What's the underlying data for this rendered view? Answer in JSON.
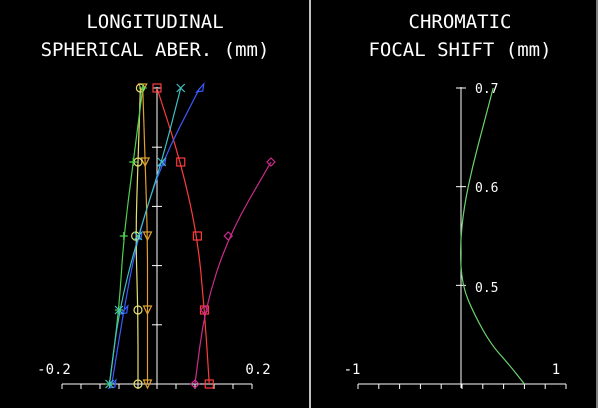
{
  "chart_data": [
    {
      "type": "line",
      "title_lines": [
        "LONGITUDINAL",
        "SPHERICAL ABER. (mm)"
      ],
      "xlim": [
        -0.2,
        0.2
      ],
      "ylim": [
        0,
        1
      ],
      "x_tick_labels": [
        "-0.2",
        "0.2"
      ],
      "grid": false,
      "y_ticks": [
        0.2,
        0.4,
        0.6,
        0.8
      ],
      "series": [
        {
          "color": "#ff3b3b",
          "marker": "square",
          "points": [
            [
              0.11,
              0
            ],
            [
              0.1,
              0.25
            ],
            [
              0.085,
              0.5
            ],
            [
              0.05,
              0.75
            ],
            [
              0.0,
              1.0
            ]
          ]
        },
        {
          "color": "#3a5bff",
          "marker": "arrow",
          "points": [
            [
              -0.095,
              0
            ],
            [
              -0.07,
              0.25
            ],
            [
              -0.04,
              0.5
            ],
            [
              0.01,
              0.75
            ],
            [
              0.09,
              1.0
            ]
          ]
        },
        {
          "color": "#cc2c8c",
          "marker": "diamond",
          "points": [
            [
              0.08,
              0
            ],
            [
              0.1,
              0.25
            ],
            [
              0.15,
              0.5
            ],
            [
              0.24,
              0.75
            ]
          ]
        },
        {
          "color": "#e0a030",
          "marker": "triangle",
          "points": [
            [
              -0.02,
              0
            ],
            [
              -0.02,
              0.25
            ],
            [
              -0.02,
              0.5
            ],
            [
              -0.025,
              0.75
            ],
            [
              -0.03,
              1.0
            ]
          ]
        },
        {
          "color": "#e8e070",
          "marker": "circle",
          "points": [
            [
              -0.04,
              0
            ],
            [
              -0.04,
              0.25
            ],
            [
              -0.045,
              0.5
            ],
            [
              -0.04,
              0.75
            ],
            [
              -0.035,
              1.0
            ]
          ]
        },
        {
          "color": "#50d050",
          "marker": "plus",
          "points": [
            [
              -0.1,
              0
            ],
            [
              -0.08,
              0.25
            ],
            [
              -0.07,
              0.5
            ],
            [
              -0.05,
              0.75
            ],
            [
              -0.03,
              1.0
            ]
          ]
        },
        {
          "color": "#40c0c0",
          "marker": "cross",
          "points": [
            [
              -0.1,
              0
            ],
            [
              -0.08,
              0.25
            ],
            [
              -0.04,
              0.5
            ],
            [
              0.01,
              0.75
            ],
            [
              0.05,
              1.0
            ]
          ]
        }
      ]
    },
    {
      "type": "line",
      "title_lines": [
        "CHROMATIC",
        "FOCAL SHIFT (mm)"
      ],
      "xlim": [
        -1,
        1
      ],
      "ylim": [
        0.4,
        0.7
      ],
      "x_tick_labels": [
        "-1",
        "1"
      ],
      "y_tick_labels": [
        "0.7",
        "0.6",
        "0.5"
      ],
      "y_ticks": [
        0.5,
        0.6,
        0.7
      ],
      "grid": false,
      "series": [
        {
          "color": "#6cd36c",
          "points": [
            [
              0.6,
              0.4
            ],
            [
              0.45,
              0.42
            ],
            [
              0.28,
              0.44
            ],
            [
              0.12,
              0.47
            ],
            [
              0.0,
              0.5
            ],
            [
              -0.02,
              0.54
            ],
            [
              0.02,
              0.58
            ],
            [
              0.1,
              0.62
            ],
            [
              0.2,
              0.66
            ],
            [
              0.3,
              0.7
            ]
          ]
        }
      ]
    }
  ]
}
